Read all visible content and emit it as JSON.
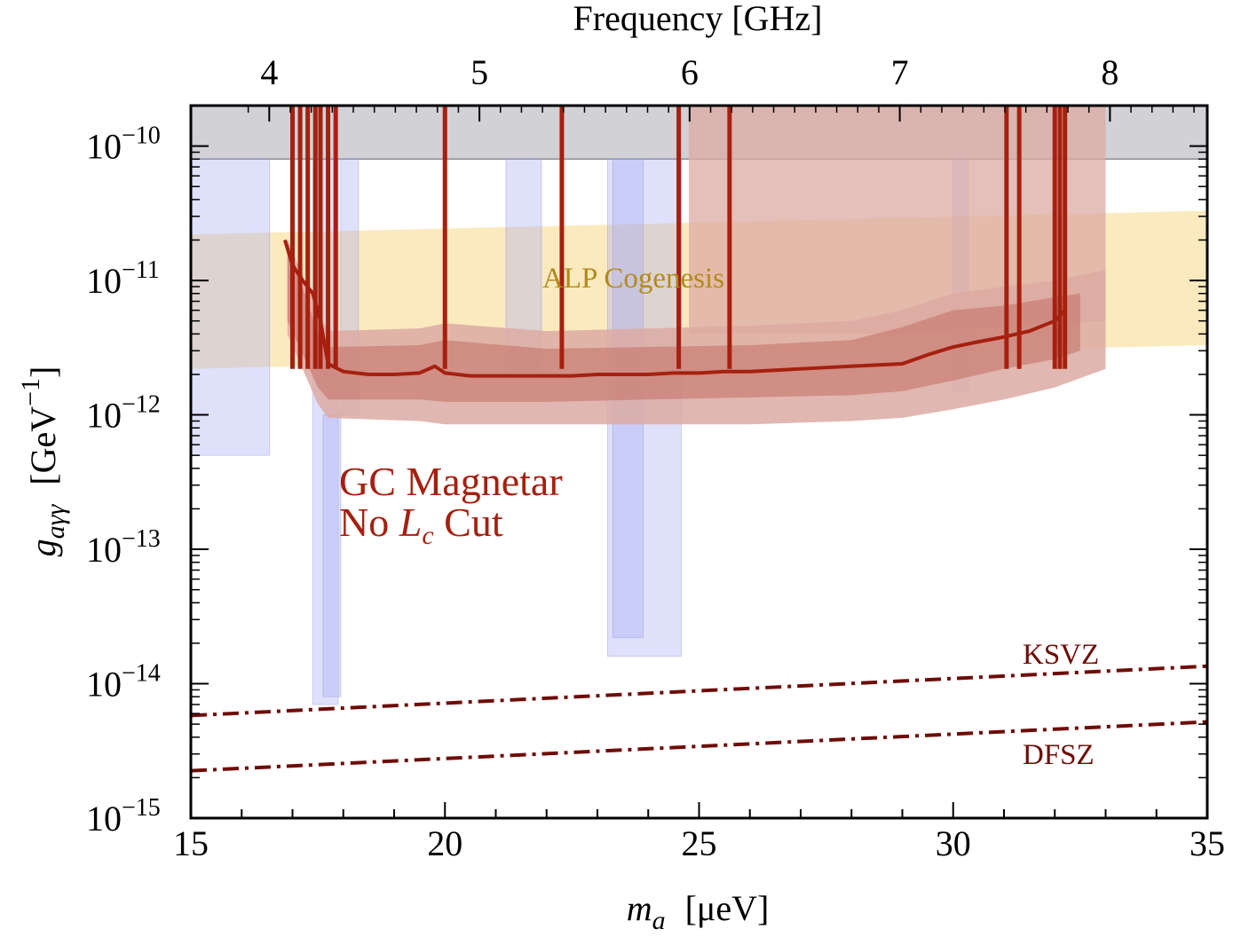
{
  "chart_data": {
    "type": "area",
    "title": "",
    "xlabel_var": "m",
    "xlabel_sub": "a",
    "xlabel_unit": "[μeV]",
    "ylabel_var": "g",
    "ylabel_sub": "aγγ",
    "ylabel_unit": "[GeV",
    "ylabel_unit_exp": "−1",
    "ylabel_unit_close": "]",
    "top_xlabel": "Frequency  [GHz]",
    "xlim": [
      15,
      35
    ],
    "ylim": [
      1e-15,
      2e-10
    ],
    "yscale": "log",
    "x_ticks": [
      {
        "value": 15,
        "label": "15"
      },
      {
        "value": 20,
        "label": "20"
      },
      {
        "value": 25,
        "label": "25"
      },
      {
        "value": 30,
        "label": "30"
      },
      {
        "value": 35,
        "label": "35"
      }
    ],
    "top_ticks": [
      {
        "value": 4,
        "label": "4"
      },
      {
        "value": 5,
        "label": "5"
      },
      {
        "value": 6,
        "label": "6"
      },
      {
        "value": 7,
        "label": "7"
      },
      {
        "value": 8,
        "label": "8"
      }
    ],
    "y_ticks": [
      {
        "exp": -15,
        "base": "10",
        "sup": "−15"
      },
      {
        "exp": -14,
        "base": "10",
        "sup": "−14"
      },
      {
        "exp": -13,
        "base": "10",
        "sup": "−13"
      },
      {
        "exp": -12,
        "base": "10",
        "sup": "−12"
      },
      {
        "exp": -11,
        "base": "10",
        "sup": "−11"
      },
      {
        "exp": -10,
        "base": "10",
        "sup": "−10"
      }
    ],
    "annotations": {
      "alp": "ALP Cogenesis",
      "magnetar_line1": "GC Magnetar",
      "magnetar_line2_a": "No ",
      "magnetar_line2_var": "L",
      "magnetar_line2_sub": "c",
      "magnetar_line2_b": " Cut",
      "ksvz": "KSVZ",
      "dfsz": "DFSZ"
    },
    "colors": {
      "limit": "#a6200f",
      "band_dark": "#c97c72",
      "band_light": "#dcaaa3",
      "haloscope": "#a3a9f3",
      "alp": "#fbe3aa",
      "alp_text": "#b18a1e",
      "excluded": "#c6c6cc",
      "qcd": "#6e0c06"
    },
    "excluded_band": {
      "label": "",
      "y_low": 8e-11,
      "y_high": 2e-10
    },
    "alp_band": {
      "x": [
        15,
        35
      ],
      "y_low": [
        2.2e-12,
        3.3e-12
      ],
      "y_high": [
        2.2e-11,
        3.3e-11
      ]
    },
    "ksvz": {
      "x": [
        15,
        35
      ],
      "y": [
        5.8e-15,
        1.35e-14
      ]
    },
    "dfsz": {
      "x": [
        15,
        35
      ],
      "y": [
        2.25e-15,
        5.2e-15
      ]
    },
    "limit_series": {
      "name": "GC Magnetar (No Lc Cut)",
      "x": [
        16.85,
        17.0,
        17.2,
        17.4,
        17.55,
        17.7,
        18.0,
        18.5,
        19.0,
        19.5,
        19.8,
        20.0,
        20.5,
        21.0,
        21.5,
        22.0,
        22.5,
        23.0,
        23.5,
        24.0,
        24.5,
        25.0,
        25.5,
        26.0,
        27.0,
        28.0,
        29.0,
        29.5,
        30.0,
        30.5,
        31.0,
        31.5,
        32.0,
        32.2
      ],
      "y": [
        2e-11,
        1.3e-11,
        1e-11,
        8e-12,
        5e-12,
        2.4e-12,
        2.1e-12,
        2e-12,
        2e-12,
        2.05e-12,
        2.3e-12,
        2.05e-12,
        1.95e-12,
        1.95e-12,
        1.95e-12,
        1.95e-12,
        1.95e-12,
        2e-12,
        2e-12,
        2e-12,
        2.05e-12,
        2.05e-12,
        2.1e-12,
        2.1e-12,
        2.2e-12,
        2.3e-12,
        2.4e-12,
        2.8e-12,
        3.2e-12,
        3.5e-12,
        3.8e-12,
        4.2e-12,
        5e-12,
        6e-12
      ]
    },
    "band_inner": {
      "x": [
        16.9,
        17.5,
        17.7,
        19.5,
        20.0,
        22.0,
        24.0,
        26.0,
        28.0,
        29.0,
        30.0,
        31.0,
        32.0,
        32.5
      ],
      "y_low": [
        5e-12,
        1.6e-12,
        1.3e-12,
        1.3e-12,
        1.25e-12,
        1.25e-12,
        1.3e-12,
        1.35e-12,
        1.4e-12,
        1.5e-12,
        1.8e-12,
        2.2e-12,
        2.6e-12,
        3e-12
      ],
      "y_high": [
        2e-11,
        4e-12,
        3.2e-12,
        3.3e-12,
        3.6e-12,
        3.1e-12,
        3.2e-12,
        3.3e-12,
        3.6e-12,
        4.5e-12,
        6e-12,
        6.5e-12,
        7.5e-12,
        8e-12
      ]
    },
    "band_outer": {
      "x": [
        16.9,
        17.5,
        17.7,
        19.5,
        20.0,
        22.0,
        24.0,
        26.0,
        28.0,
        29.0,
        30.0,
        31.0,
        32.0,
        33.0
      ],
      "y_low": [
        4e-12,
        1.2e-12,
        9.5e-13,
        9e-13,
        8.5e-13,
        8.5e-13,
        8.5e-13,
        8.5e-13,
        9e-13,
        9.5e-13,
        1.1e-12,
        1.3e-12,
        1.6e-12,
        2.2e-12
      ],
      "y_high": [
        2e-11,
        6e-12,
        4.2e-12,
        4.4e-12,
        4.8e-12,
        4.2e-12,
        4.4e-12,
        4.6e-12,
        5e-12,
        6e-12,
        8e-12,
        9e-12,
        1e-11,
        1.2e-11
      ]
    },
    "high_mass_band": {
      "x": [
        24.8,
        29.1,
        33.0
      ],
      "y_low": [
        4e-12,
        4e-12,
        5e-12
      ],
      "y_high": [
        2e-10,
        2e-10,
        2e-10
      ]
    },
    "limit_spikes": [
      17.0,
      17.15,
      17.3,
      17.45,
      17.55,
      17.7,
      17.85,
      20.0,
      22.3,
      24.6,
      25.6,
      31.05,
      31.3,
      32.0,
      32.1,
      32.2
    ],
    "haloscope_regions": [
      {
        "x0": 15.0,
        "x1": 16.55,
        "y_low": 5e-13,
        "y_high": 8e-11
      },
      {
        "x0": 17.4,
        "x1": 17.9,
        "y_low": 7e-15,
        "y_high": 8e-11
      },
      {
        "x0": 17.6,
        "x1": 17.95,
        "y_low": 8e-15,
        "y_high": 1e-12
      },
      {
        "x0": 17.95,
        "x1": 18.3,
        "y_low": 1e-12,
        "y_high": 8e-11
      },
      {
        "x0": 21.2,
        "x1": 21.9,
        "y_low": 2e-12,
        "y_high": 8e-11
      },
      {
        "x0": 23.2,
        "x1": 24.65,
        "y_low": 1.6e-14,
        "y_high": 8e-11
      },
      {
        "x0": 23.3,
        "x1": 23.9,
        "y_low": 2.2e-14,
        "y_high": 8e-11
      },
      {
        "x0": 30.0,
        "x1": 30.3,
        "y_low": 1.5e-12,
        "y_high": 8e-11
      }
    ]
  }
}
